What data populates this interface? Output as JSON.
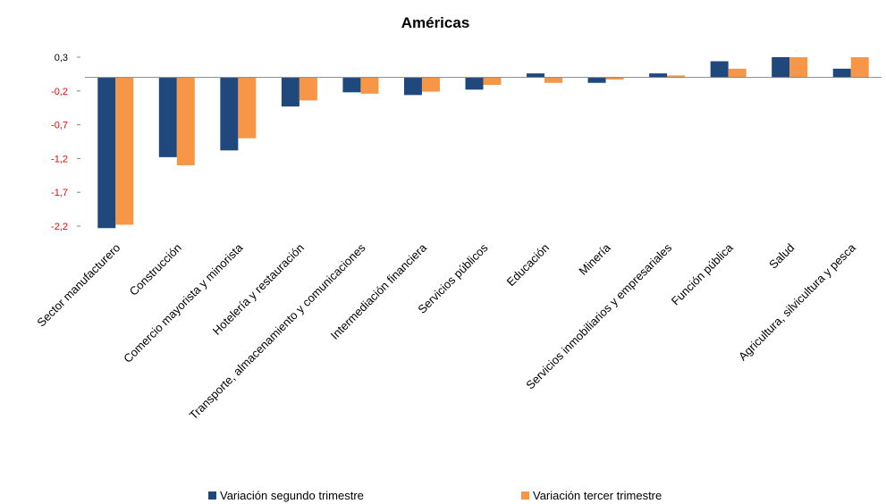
{
  "chart_data": {
    "type": "bar",
    "title": "Américas",
    "xlabel": "",
    "ylabel": "",
    "ylim": [
      -2.2,
      0.3
    ],
    "yticks": [
      "0,3",
      "-0,2",
      "-0,7",
      "-1,2",
      "-1,7",
      "-2,2"
    ],
    "ytick_values": [
      0.3,
      -0.2,
      -0.7,
      -1.2,
      -1.7,
      -2.2
    ],
    "ytick_colors": [
      "#000000",
      "#ff0000",
      "#ff0000",
      "#ff0000",
      "#ff0000",
      "#ff0000"
    ],
    "grid": false,
    "legend_position": "bottom",
    "categories": [
      "Sector manufacturero",
      "Construcción",
      "Comercio mayorista y minorista",
      "Hotelería y restauración",
      "Transporte, almacenamiento y comunicaciones",
      "Intermediación financiera",
      "Servicios públicos",
      "Educación",
      "Minería",
      "Servicios inmobiliarios y empresariales",
      "Función pública",
      "Salud",
      "Agricultura, silvicultura y pesca"
    ],
    "series": [
      {
        "name": "Variación segundo trimestre",
        "color": "#1f497d",
        "values": [
          -2.23,
          -1.18,
          -1.08,
          -0.43,
          -0.22,
          -0.26,
          -0.18,
          0.06,
          -0.08,
          0.06,
          0.24,
          0.3,
          0.13
        ]
      },
      {
        "name": "Variación tercer trimestre",
        "color": "#f79646",
        "values": [
          -2.18,
          -1.3,
          -0.9,
          -0.34,
          -0.24,
          -0.21,
          -0.11,
          -0.08,
          -0.03,
          0.03,
          0.13,
          0.3,
          0.3
        ]
      }
    ]
  }
}
